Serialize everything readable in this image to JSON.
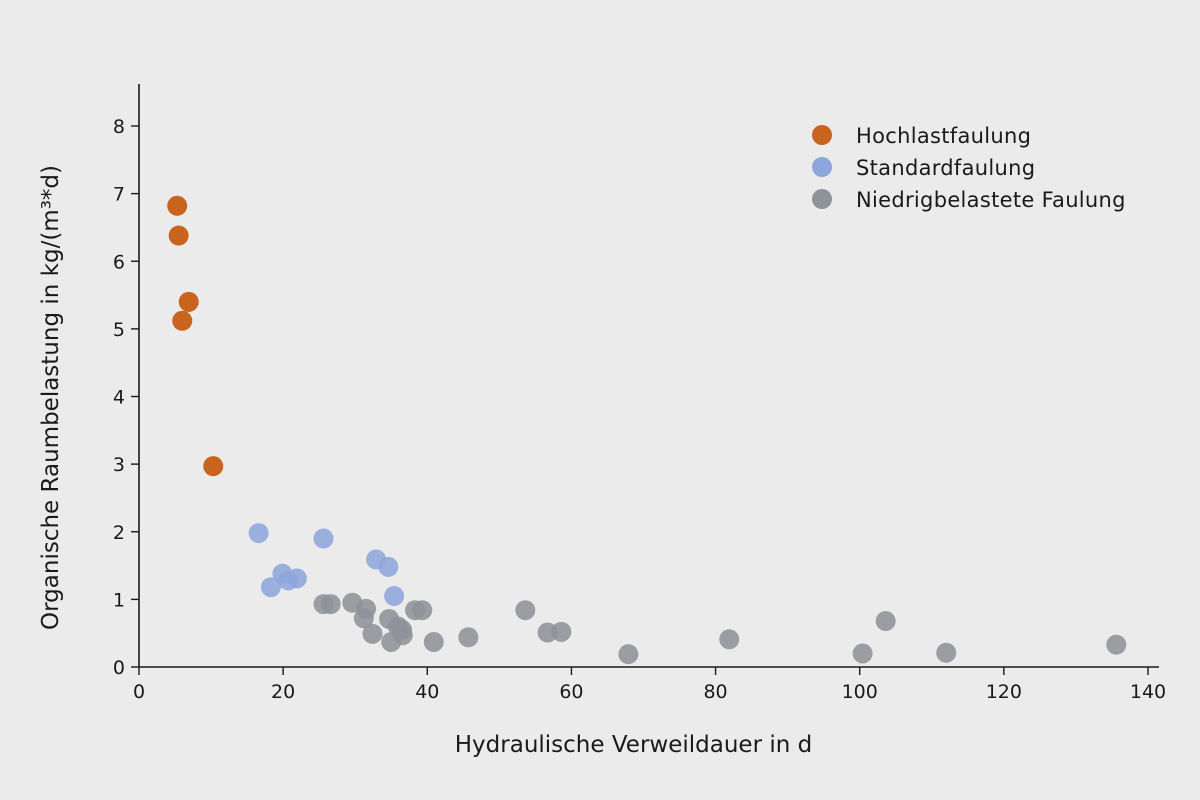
{
  "chart_data": {
    "type": "scatter",
    "xlabel": "Hydraulische Verweildauer in d",
    "ylabel": "Organische Raumbelastung in kg/(m³*d)",
    "xlim": [
      0,
      140
    ],
    "ylim": [
      0,
      8
    ],
    "xticks": [
      "0",
      "20",
      "40",
      "60",
      "80",
      "100",
      "120",
      "140"
    ],
    "yticks": [
      "0",
      "1",
      "2",
      "3",
      "4",
      "5",
      "6",
      "7",
      "8"
    ],
    "grid": false,
    "legend_position": "top-right",
    "series": [
      {
        "name": "Hochlastfaulung",
        "color": "#c8641e",
        "points": [
          {
            "x": 5.3,
            "y": 6.82
          },
          {
            "x": 5.5,
            "y": 6.38
          },
          {
            "x": 6.0,
            "y": 5.12
          },
          {
            "x": 6.9,
            "y": 5.4
          },
          {
            "x": 10.3,
            "y": 2.97
          }
        ]
      },
      {
        "name": "Standardfaulung",
        "color": "#8fa6dc",
        "points": [
          {
            "x": 16.6,
            "y": 1.98
          },
          {
            "x": 18.3,
            "y": 1.18
          },
          {
            "x": 19.9,
            "y": 1.38
          },
          {
            "x": 20.7,
            "y": 1.28
          },
          {
            "x": 21.9,
            "y": 1.31
          },
          {
            "x": 25.6,
            "y": 1.9
          },
          {
            "x": 32.9,
            "y": 1.59
          },
          {
            "x": 34.6,
            "y": 1.48
          },
          {
            "x": 35.4,
            "y": 1.05
          }
        ]
      },
      {
        "name": "Niedrigbelastete Faulung",
        "color": "#8e9399",
        "points": [
          {
            "x": 25.6,
            "y": 0.93
          },
          {
            "x": 26.6,
            "y": 0.93
          },
          {
            "x": 29.6,
            "y": 0.95
          },
          {
            "x": 31.2,
            "y": 0.72
          },
          {
            "x": 31.5,
            "y": 0.86
          },
          {
            "x": 32.4,
            "y": 0.49
          },
          {
            "x": 34.7,
            "y": 0.71
          },
          {
            "x": 35.0,
            "y": 0.37
          },
          {
            "x": 35.9,
            "y": 0.6
          },
          {
            "x": 36.5,
            "y": 0.55
          },
          {
            "x": 36.6,
            "y": 0.47
          },
          {
            "x": 38.3,
            "y": 0.84
          },
          {
            "x": 39.3,
            "y": 0.84
          },
          {
            "x": 40.9,
            "y": 0.37
          },
          {
            "x": 45.7,
            "y": 0.44
          },
          {
            "x": 53.6,
            "y": 0.84
          },
          {
            "x": 56.7,
            "y": 0.51
          },
          {
            "x": 58.6,
            "y": 0.52
          },
          {
            "x": 67.9,
            "y": 0.19
          },
          {
            "x": 81.9,
            "y": 0.41
          },
          {
            "x": 100.4,
            "y": 0.2
          },
          {
            "x": 103.6,
            "y": 0.68
          },
          {
            "x": 112.0,
            "y": 0.21
          },
          {
            "x": 135.6,
            "y": 0.33
          }
        ]
      }
    ]
  }
}
